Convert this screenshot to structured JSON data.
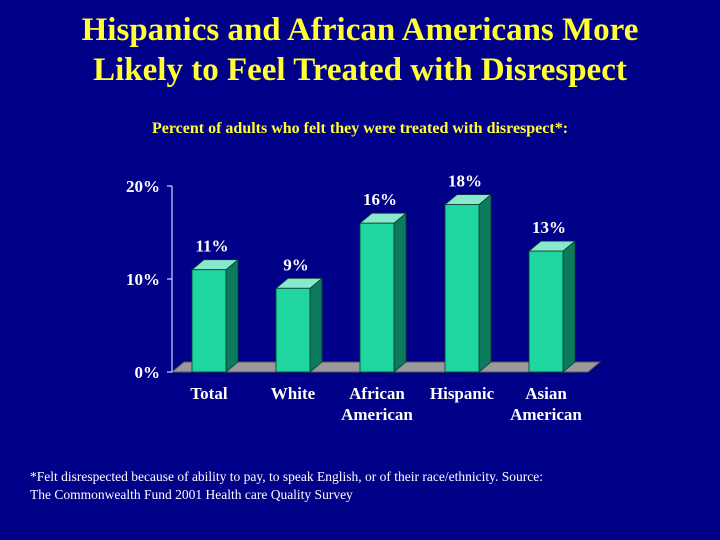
{
  "title_line1": "Hispanics and African Americans More",
  "title_line2": "Likely to Feel Treated with Disrespect",
  "subtitle": "Percent of adults who felt they were treated with disrespect*:",
  "footnote_line1": "*Felt disrespected because of ability to pay, to speak English, or of their race/ethnicity.  Source:",
  "footnote_line2": "The Commonwealth Fund 2001 Health care Quality Survey",
  "colors": {
    "background": "#000088",
    "title": "#ffff33",
    "axis_labels": "#ffffff",
    "value_labels": "#ffffff",
    "bar_front": "#1fd6a0",
    "bar_side": "#0c7a5c",
    "bar_top": "#8ae8cc",
    "floor": "#9a9a9a",
    "floor_edge": "#5a5a5a"
  },
  "chart_data": {
    "type": "bar",
    "categories": [
      [
        "Total"
      ],
      [
        "White"
      ],
      [
        "African",
        "American"
      ],
      [
        "Hispanic"
      ],
      [
        "Asian",
        "American"
      ]
    ],
    "values": [
      11,
      9,
      16,
      18,
      13
    ],
    "value_labels": [
      "11%",
      "9%",
      "16%",
      "18%",
      "13%"
    ],
    "ylim": [
      0,
      20
    ],
    "yticks": [
      0,
      10,
      20
    ],
    "ytick_labels": [
      "0%",
      "10%",
      "20%"
    ],
    "grid": false,
    "legend": false,
    "style": "3d"
  }
}
